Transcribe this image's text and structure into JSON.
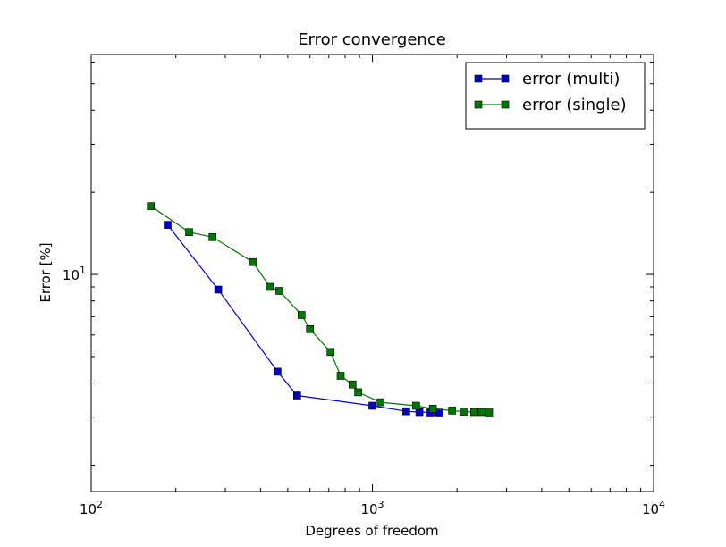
{
  "chart_data": {
    "type": "line",
    "title": "Error convergence",
    "xlabel": "Degrees of freedom",
    "ylabel": "Error [%]",
    "xscale": "log",
    "yscale": "log",
    "xlim": [
      100,
      10000
    ],
    "ylim": [
      1.6,
      64
    ],
    "x_ticks": [
      {
        "value": 100,
        "base": "10",
        "exp": "2"
      },
      {
        "value": 1000,
        "base": "10",
        "exp": "3"
      },
      {
        "value": 10000,
        "base": "10",
        "exp": "4"
      }
    ],
    "y_ticks": [
      {
        "value": 10,
        "base": "10",
        "exp": "1"
      }
    ],
    "grid": false,
    "legend_position": "top-right",
    "series": [
      {
        "name": "error (multi)",
        "color": "#0000cc",
        "marker": "square",
        "x": [
          187,
          283,
          460,
          540,
          1000,
          1320,
          1470,
          1610,
          1730
        ],
        "y": [
          15.2,
          8.8,
          4.4,
          3.6,
          3.3,
          3.15,
          3.13,
          3.12,
          3.12
        ]
      },
      {
        "name": "error (single)",
        "color": "#007700",
        "marker": "square",
        "x": [
          163,
          223,
          270,
          376,
          432,
          467,
          560,
          600,
          710,
          771,
          850,
          890,
          1070,
          1430,
          1640,
          1920,
          2110,
          2300,
          2450,
          2600
        ],
        "y": [
          17.8,
          14.3,
          13.7,
          11.1,
          9.0,
          8.7,
          7.1,
          6.3,
          5.2,
          4.25,
          3.95,
          3.7,
          3.4,
          3.3,
          3.22,
          3.17,
          3.14,
          3.13,
          3.13,
          3.12
        ]
      }
    ]
  }
}
